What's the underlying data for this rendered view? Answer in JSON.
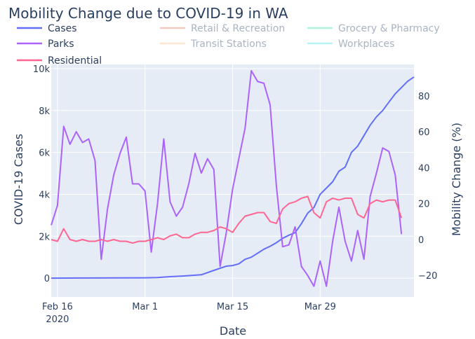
{
  "chart_data": {
    "type": "line",
    "title": "Mobility Change due to COVID-19 in WA",
    "xlabel": "Date",
    "ylabel": "COVID-19 Cases",
    "y2label": "Mobility Change (%)",
    "x_start": "2020-02-15",
    "x_end": "2020-04-13",
    "xticks": [
      {
        "date": "2020-02-16",
        "label": "Feb 16",
        "sublabel": "2020"
      },
      {
        "date": "2020-03-01",
        "label": "Mar 1",
        "sublabel": ""
      },
      {
        "date": "2020-03-15",
        "label": "Mar 15",
        "sublabel": ""
      },
      {
        "date": "2020-03-29",
        "label": "Mar 29",
        "sublabel": ""
      }
    ],
    "y_range": [
      -900,
      10200
    ],
    "y_ticks": [
      {
        "value": 0,
        "label": "0"
      },
      {
        "value": 2000,
        "label": "2k"
      },
      {
        "value": 4000,
        "label": "4k"
      },
      {
        "value": 6000,
        "label": "6k"
      },
      {
        "value": 8000,
        "label": "8k"
      },
      {
        "value": 10000,
        "label": "10k"
      }
    ],
    "y2_range": [
      -32,
      97.5
    ],
    "y2_ticks": [
      {
        "value": -20,
        "label": "−20"
      },
      {
        "value": 0,
        "label": "0"
      },
      {
        "value": 20,
        "label": "20"
      },
      {
        "value": 40,
        "label": "40"
      },
      {
        "value": 60,
        "label": "60"
      },
      {
        "value": 80,
        "label": "80"
      }
    ],
    "legend_position": "top",
    "series": [
      {
        "name": "Cases",
        "axis": "y",
        "color": "#636efa",
        "visible": true,
        "points": [
          [
            "2020-02-15",
            0
          ],
          [
            "2020-02-20",
            5
          ],
          [
            "2020-02-25",
            10
          ],
          [
            "2020-03-01",
            15
          ],
          [
            "2020-03-03",
            27
          ],
          [
            "2020-03-05",
            70
          ],
          [
            "2020-03-07",
            100
          ],
          [
            "2020-03-10",
            160
          ],
          [
            "2020-03-12",
            370
          ],
          [
            "2020-03-14",
            570
          ],
          [
            "2020-03-15",
            600
          ],
          [
            "2020-03-16",
            680
          ],
          [
            "2020-03-17",
            900
          ],
          [
            "2020-03-18",
            1000
          ],
          [
            "2020-03-19",
            1190
          ],
          [
            "2020-03-20",
            1380
          ],
          [
            "2020-03-21",
            1520
          ],
          [
            "2020-03-22",
            1690
          ],
          [
            "2020-03-23",
            1900
          ],
          [
            "2020-03-24",
            2050
          ],
          [
            "2020-03-25",
            2170
          ],
          [
            "2020-03-26",
            2600
          ],
          [
            "2020-03-27",
            3100
          ],
          [
            "2020-03-28",
            3370
          ],
          [
            "2020-03-29",
            4000
          ],
          [
            "2020-03-30",
            4300
          ],
          [
            "2020-03-31",
            4600
          ],
          [
            "2020-04-01",
            5100
          ],
          [
            "2020-04-02",
            5300
          ],
          [
            "2020-04-03",
            6000
          ],
          [
            "2020-04-04",
            6300
          ],
          [
            "2020-04-05",
            6800
          ],
          [
            "2020-04-06",
            7300
          ],
          [
            "2020-04-07",
            7700
          ],
          [
            "2020-04-08",
            8000
          ],
          [
            "2020-04-09",
            8400
          ],
          [
            "2020-04-10",
            8800
          ],
          [
            "2020-04-11",
            9100
          ],
          [
            "2020-04-12",
            9400
          ],
          [
            "2020-04-13",
            9600
          ]
        ]
      },
      {
        "name": "Parks",
        "axis": "y2",
        "color": "#ab63fa",
        "visible": true,
        "points": [
          [
            "2020-02-15",
            8
          ],
          [
            "2020-02-16",
            19
          ],
          [
            "2020-02-17",
            63
          ],
          [
            "2020-02-18",
            53
          ],
          [
            "2020-02-19",
            60
          ],
          [
            "2020-02-20",
            54
          ],
          [
            "2020-02-21",
            56
          ],
          [
            "2020-02-22",
            44
          ],
          [
            "2020-02-23",
            -11
          ],
          [
            "2020-02-24",
            17
          ],
          [
            "2020-02-25",
            36
          ],
          [
            "2020-02-26",
            48
          ],
          [
            "2020-02-27",
            57
          ],
          [
            "2020-02-28",
            31
          ],
          [
            "2020-02-29",
            31
          ],
          [
            "2020-03-01",
            27
          ],
          [
            "2020-03-02",
            -7
          ],
          [
            "2020-03-03",
            20
          ],
          [
            "2020-03-04",
            56
          ],
          [
            "2020-03-05",
            21
          ],
          [
            "2020-03-06",
            13
          ],
          [
            "2020-03-07",
            18
          ],
          [
            "2020-03-08",
            31
          ],
          [
            "2020-03-09",
            48
          ],
          [
            "2020-03-10",
            37
          ],
          [
            "2020-03-11",
            45
          ],
          [
            "2020-03-12",
            39
          ],
          [
            "2020-03-13",
            -15
          ],
          [
            "2020-03-14",
            4
          ],
          [
            "2020-03-15",
            28
          ],
          [
            "2020-03-16",
            45
          ],
          [
            "2020-03-17",
            62
          ],
          [
            "2020-03-18",
            94
          ],
          [
            "2020-03-19",
            88
          ],
          [
            "2020-03-20",
            87
          ],
          [
            "2020-03-21",
            75
          ],
          [
            "2020-03-22",
            30
          ],
          [
            "2020-03-23",
            -4
          ],
          [
            "2020-03-24",
            -3
          ],
          [
            "2020-03-25",
            7
          ],
          [
            "2020-03-26",
            -15
          ],
          [
            "2020-03-27",
            -20
          ],
          [
            "2020-03-28",
            -26
          ],
          [
            "2020-03-29",
            -12
          ],
          [
            "2020-03-30",
            -26
          ],
          [
            "2020-03-31",
            -1
          ],
          [
            "2020-04-01",
            18
          ],
          [
            "2020-04-02",
            -1
          ],
          [
            "2020-04-03",
            -12
          ],
          [
            "2020-04-04",
            5
          ],
          [
            "2020-04-05",
            -11
          ],
          [
            "2020-04-06",
            24
          ],
          [
            "2020-04-07",
            37
          ],
          [
            "2020-04-08",
            51
          ],
          [
            "2020-04-09",
            49
          ],
          [
            "2020-04-10",
            36
          ],
          [
            "2020-04-11",
            3
          ]
        ]
      },
      {
        "name": "Residential",
        "axis": "y2",
        "color": "#ff6692",
        "visible": true,
        "points": [
          [
            "2020-02-15",
            0
          ],
          [
            "2020-02-16",
            -1
          ],
          [
            "2020-02-17",
            6
          ],
          [
            "2020-02-18",
            0
          ],
          [
            "2020-02-19",
            -1
          ],
          [
            "2020-02-20",
            0
          ],
          [
            "2020-02-21",
            -1
          ],
          [
            "2020-02-22",
            -1
          ],
          [
            "2020-02-23",
            0
          ],
          [
            "2020-02-24",
            -1
          ],
          [
            "2020-02-25",
            0
          ],
          [
            "2020-02-26",
            -1
          ],
          [
            "2020-02-27",
            -1
          ],
          [
            "2020-02-28",
            -2
          ],
          [
            "2020-02-29",
            -1
          ],
          [
            "2020-03-01",
            -1
          ],
          [
            "2020-03-02",
            0
          ],
          [
            "2020-03-03",
            1
          ],
          [
            "2020-03-04",
            0
          ],
          [
            "2020-03-05",
            2
          ],
          [
            "2020-03-06",
            3
          ],
          [
            "2020-03-07",
            1
          ],
          [
            "2020-03-08",
            1
          ],
          [
            "2020-03-09",
            3
          ],
          [
            "2020-03-10",
            4
          ],
          [
            "2020-03-11",
            4
          ],
          [
            "2020-03-12",
            5
          ],
          [
            "2020-03-13",
            7
          ],
          [
            "2020-03-14",
            6
          ],
          [
            "2020-03-15",
            4
          ],
          [
            "2020-03-16",
            9
          ],
          [
            "2020-03-17",
            13
          ],
          [
            "2020-03-18",
            14
          ],
          [
            "2020-03-19",
            15
          ],
          [
            "2020-03-20",
            15
          ],
          [
            "2020-03-21",
            10
          ],
          [
            "2020-03-22",
            9
          ],
          [
            "2020-03-23",
            17
          ],
          [
            "2020-03-24",
            20
          ],
          [
            "2020-03-25",
            21
          ],
          [
            "2020-03-26",
            23
          ],
          [
            "2020-03-27",
            24
          ],
          [
            "2020-03-28",
            15
          ],
          [
            "2020-03-29",
            12
          ],
          [
            "2020-03-30",
            21
          ],
          [
            "2020-03-31",
            23
          ],
          [
            "2020-04-01",
            22
          ],
          [
            "2020-04-02",
            23
          ],
          [
            "2020-04-03",
            23
          ],
          [
            "2020-04-04",
            14
          ],
          [
            "2020-04-05",
            12
          ],
          [
            "2020-04-06",
            20
          ],
          [
            "2020-04-07",
            22
          ],
          [
            "2020-04-08",
            21
          ],
          [
            "2020-04-09",
            22
          ],
          [
            "2020-04-10",
            22
          ],
          [
            "2020-04-11",
            12
          ]
        ]
      },
      {
        "name": "Retail & Recreation",
        "axis": "y2",
        "color": "#f0a59b",
        "visible": false,
        "points": []
      },
      {
        "name": "Transit Stations",
        "axis": "y2",
        "color": "#ffd7b0",
        "visible": false,
        "points": []
      },
      {
        "name": "Grocery & Pharmacy",
        "axis": "y2",
        "color": "#7ee8c6",
        "visible": false,
        "points": []
      },
      {
        "name": "Workplaces",
        "axis": "y2",
        "color": "#8ae9f2",
        "visible": false,
        "points": []
      }
    ],
    "legend_hidden_text_color": "#a9b4c2",
    "legend_visible_text_color": "#2a3f5f",
    "plot_bg": "#e5ecf6",
    "grid_color": "#ffffff"
  }
}
